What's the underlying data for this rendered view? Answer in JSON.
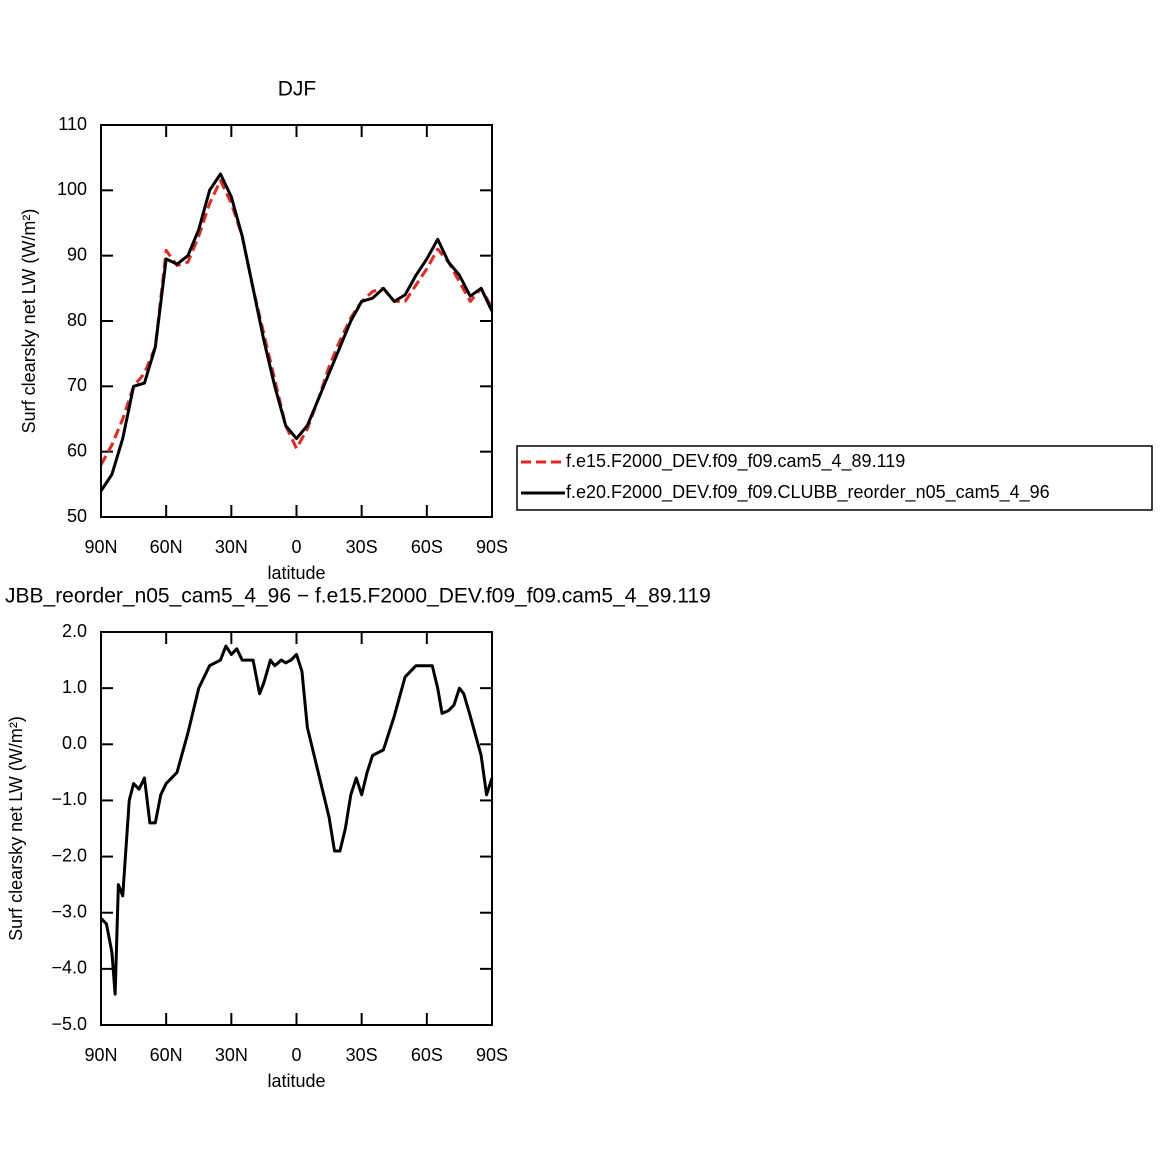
{
  "chart_data": [
    {
      "type": "line",
      "title": "DJF",
      "x_label": "latitude",
      "y_label": "Surf clearsky net LW (W/m²)",
      "x": [
        90,
        85,
        80,
        75,
        70,
        65,
        60,
        55,
        50,
        45,
        40,
        35,
        30,
        25,
        20,
        15,
        10,
        5,
        0,
        -5,
        -10,
        -15,
        -20,
        -25,
        -30,
        -35,
        -40,
        -45,
        -50,
        -55,
        -60,
        -65,
        -70,
        -75,
        -80,
        -85,
        -90
      ],
      "series": [
        {
          "name": "f.e15.F2000_DEV.f09_f09.cam5_4_89.119",
          "color": "#e8251f",
          "dash": "dashed",
          "values": [
            58,
            61,
            65,
            70,
            72,
            76,
            90.8,
            88.5,
            89,
            93,
            98,
            101.5,
            98,
            93,
            85,
            78,
            71,
            64,
            60.5,
            63.5,
            68,
            73,
            77,
            80.5,
            83,
            84.5,
            85,
            83,
            83,
            85.5,
            88,
            91,
            89,
            86,
            83,
            85,
            82
          ]
        },
        {
          "name": "f.e20.F2000_DEV.f09_f09.CLUBB_reorder_n05_cam5_4_96",
          "color": "#000000",
          "dash": "solid",
          "values": [
            54,
            56.5,
            62,
            70,
            70.5,
            76,
            89.5,
            88.7,
            90,
            94,
            100,
            102.5,
            99,
            93,
            85,
            77,
            70,
            64,
            62,
            64,
            68,
            72,
            76,
            80,
            83,
            83.5,
            85,
            83,
            84,
            87,
            89.5,
            92.5,
            89,
            87,
            83.8,
            85,
            81.5
          ]
        }
      ],
      "xlim": [
        90,
        -90
      ],
      "xticks": [
        {
          "value": 90,
          "label": "90N"
        },
        {
          "value": 60,
          "label": "60N"
        },
        {
          "value": 30,
          "label": "30N"
        },
        0,
        {
          "value": -30,
          "label": "30S"
        },
        {
          "value": -60,
          "label": "60S"
        },
        {
          "value": -90,
          "label": "90S"
        }
      ],
      "ylim": [
        50,
        110
      ],
      "yticks": [
        50,
        60,
        70,
        80,
        90,
        100,
        110
      ],
      "legend": "right"
    },
    {
      "type": "line",
      "title": "JBB_reorder_n05_cam5_4_96 − f.e15.F2000_DEV.f09_f09.cam5_4_89.119",
      "x_label": "latitude",
      "y_label": "Surf clearsky net LW (W/m²)",
      "x": [
        90,
        87.5,
        85,
        83.5,
        82,
        80,
        77,
        75,
        72.5,
        70,
        67.5,
        65,
        62.5,
        60,
        55,
        50,
        45,
        40,
        35,
        32.5,
        30,
        27.5,
        25,
        20,
        17,
        15,
        12,
        10,
        7,
        5,
        2.5,
        0,
        -2.5,
        -5,
        -10,
        -15,
        -17.5,
        -20,
        -22.5,
        -25,
        -27.5,
        -30,
        -32.5,
        -35,
        -40,
        -45,
        -50,
        -55,
        -60,
        -62.5,
        -65,
        -67,
        -70,
        -72.5,
        -75,
        -77,
        -80,
        -85,
        -87.5,
        -90
      ],
      "series": [
        {
          "name": null,
          "color": "#000000",
          "dash": "solid",
          "values": [
            -3.1,
            -3.2,
            -3.7,
            -4.45,
            -2.5,
            -2.7,
            -1.0,
            -0.7,
            -0.8,
            -0.6,
            -1.4,
            -1.4,
            -0.9,
            -0.7,
            -0.5,
            0.2,
            1.0,
            1.4,
            1.5,
            1.75,
            1.6,
            1.7,
            1.5,
            1.5,
            0.9,
            1.1,
            1.5,
            1.4,
            1.5,
            1.45,
            1.5,
            1.6,
            1.3,
            0.3,
            -0.5,
            -1.3,
            -1.9,
            -1.9,
            -1.5,
            -0.9,
            -0.6,
            -0.9,
            -0.5,
            -0.2,
            -0.1,
            0.5,
            1.2,
            1.4,
            1.4,
            1.4,
            1.0,
            0.55,
            0.6,
            0.7,
            1.0,
            0.9,
            0.5,
            -0.2,
            -0.9,
            -0.6
          ]
        }
      ],
      "xlim": [
        90,
        -90
      ],
      "xticks": [
        {
          "value": 90,
          "label": "90N"
        },
        {
          "value": 60,
          "label": "60N"
        },
        {
          "value": 30,
          "label": "30N"
        },
        0,
        {
          "value": -30,
          "label": "30S"
        },
        {
          "value": -60,
          "label": "60S"
        },
        {
          "value": -90,
          "label": "90S"
        }
      ],
      "ylim": [
        -5,
        2
      ],
      "yticks": [
        {
          "value": -5,
          "label": "−5.0"
        },
        {
          "value": -4,
          "label": "−4.0"
        },
        {
          "value": -3,
          "label": "−3.0"
        },
        {
          "value": -2,
          "label": "−2.0"
        },
        {
          "value": -1,
          "label": "−1.0"
        },
        {
          "value": 0,
          "label": "0.0"
        },
        {
          "value": 1,
          "label": "1.0"
        },
        {
          "value": 2,
          "label": "2.0"
        }
      ]
    }
  ]
}
